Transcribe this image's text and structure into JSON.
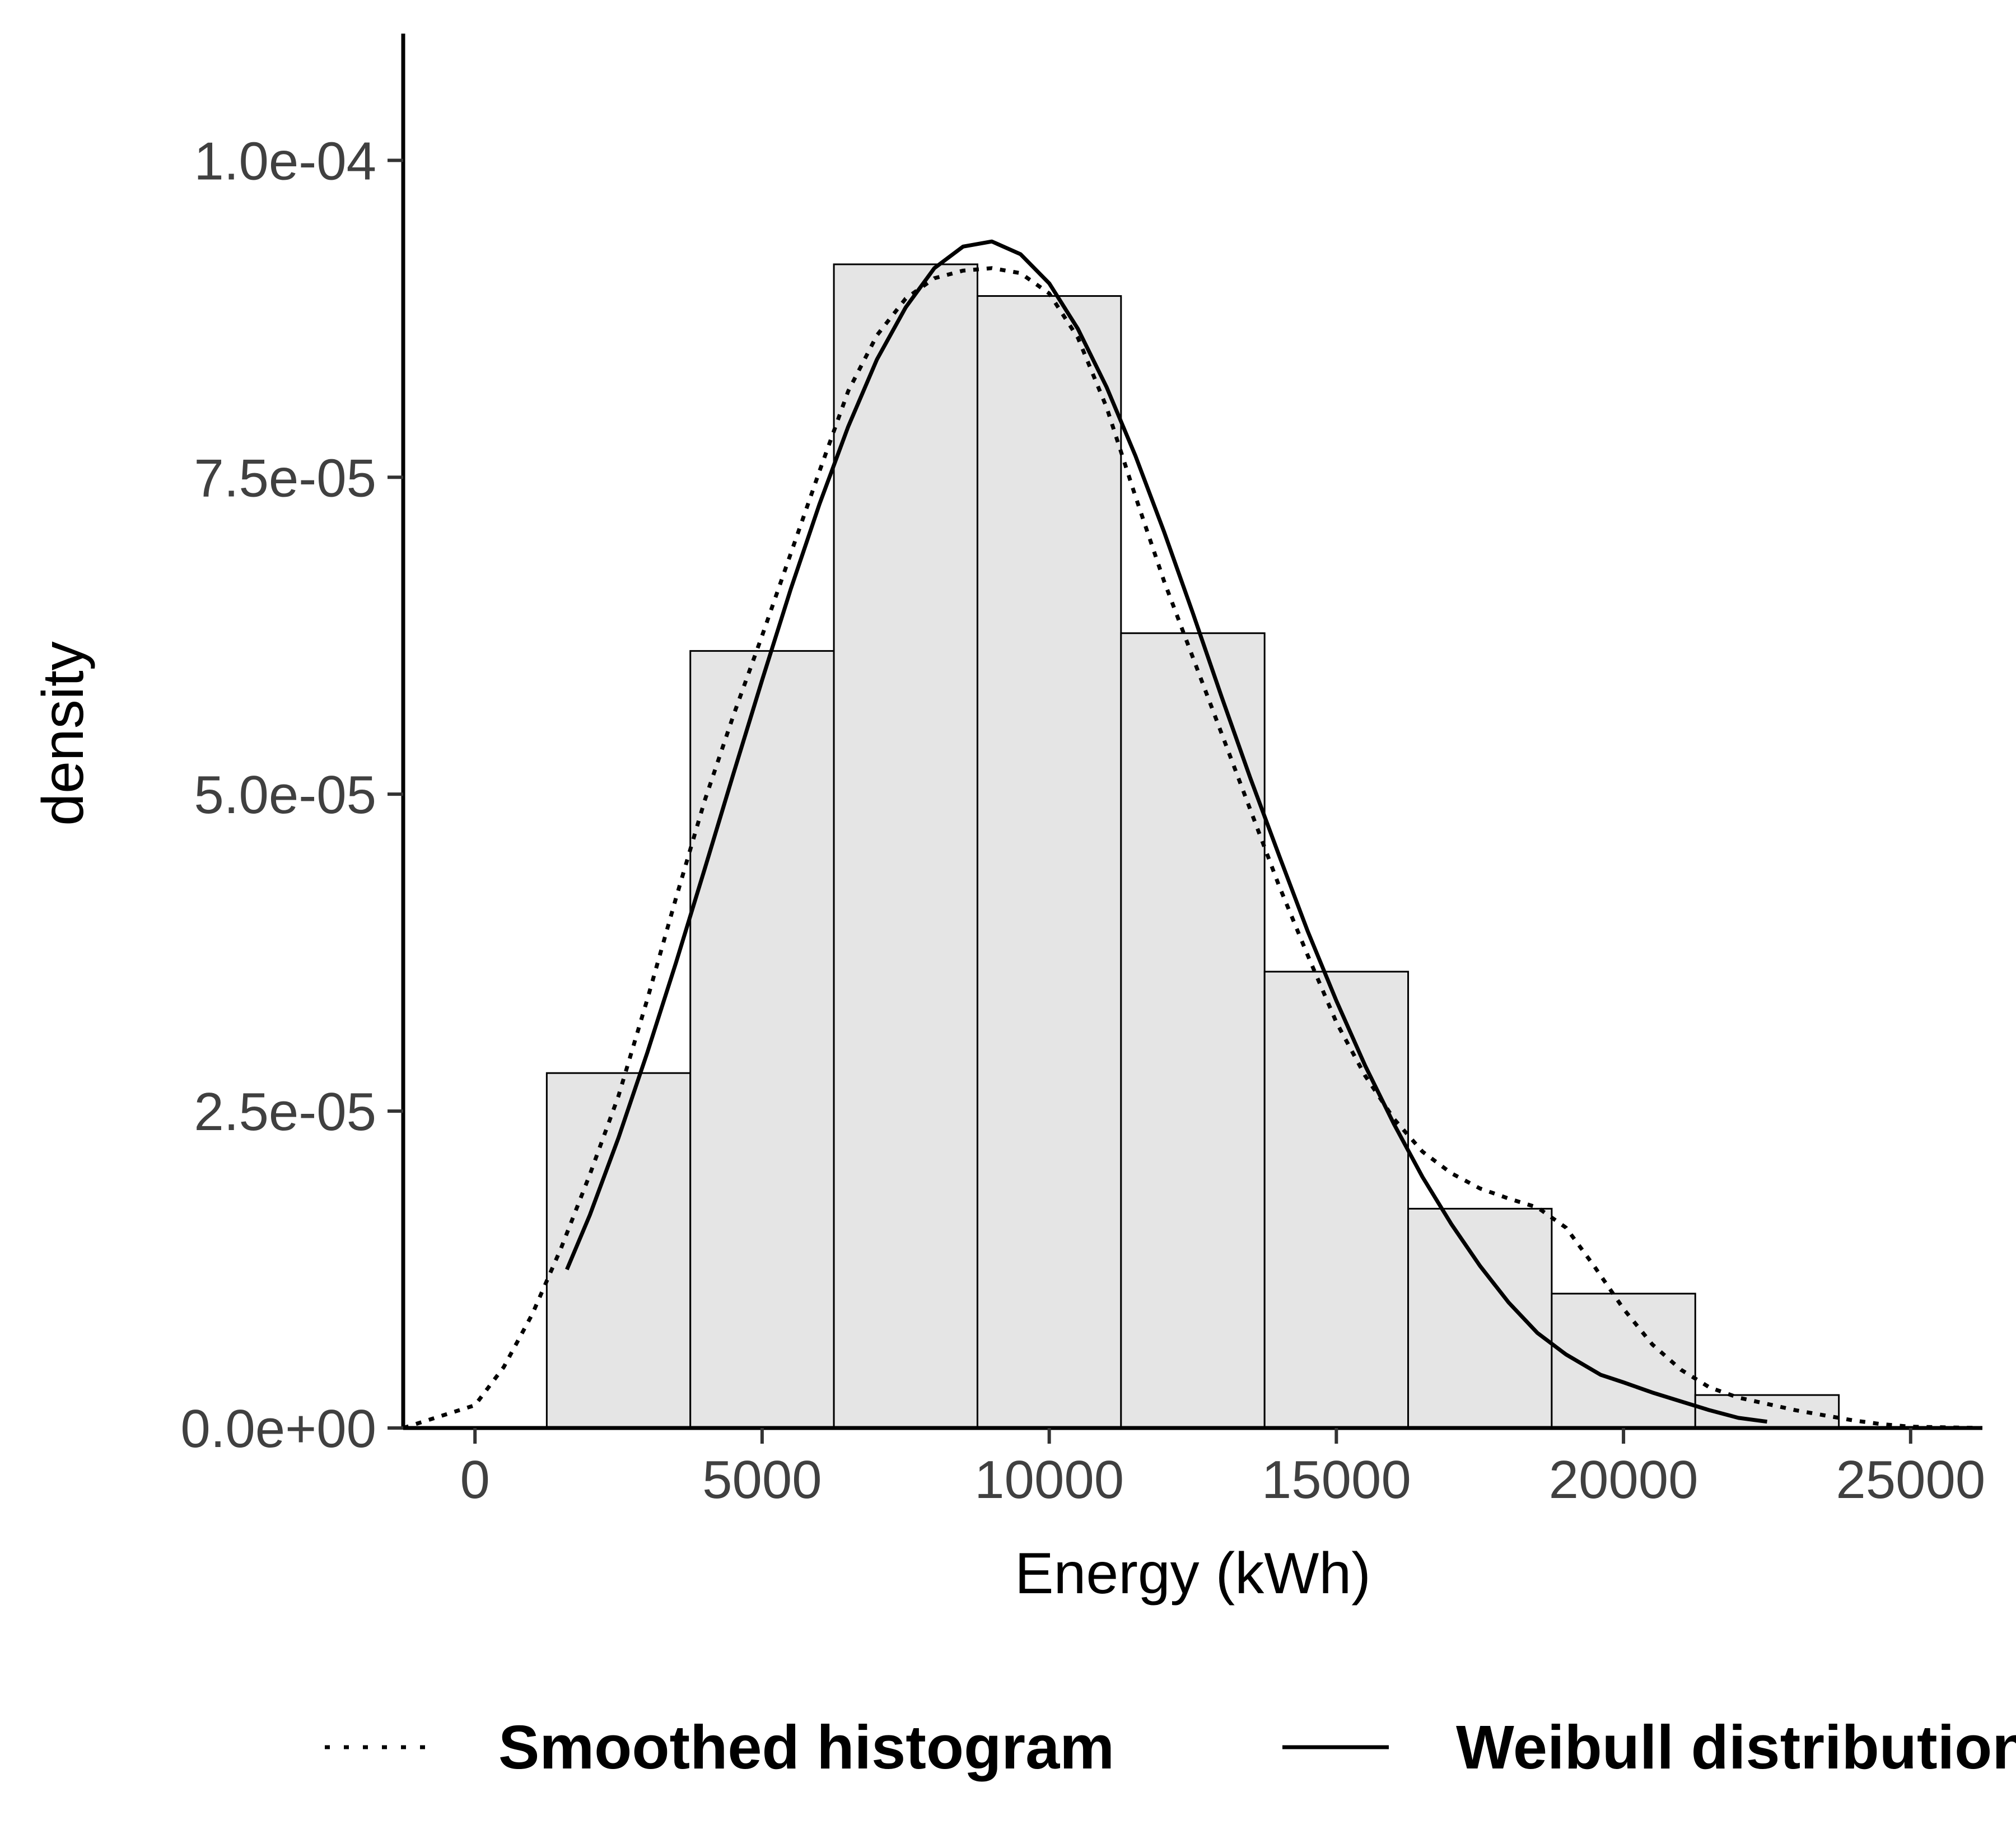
{
  "chart_data": {
    "type": "bar",
    "xlabel": "Energy (kWh)",
    "ylabel": "density",
    "xlim": [
      -1250,
      26250
    ],
    "ylim": [
      0,
      0.00011
    ],
    "x_ticks": [
      0,
      5000,
      10000,
      15000,
      20000,
      25000
    ],
    "x_tick_labels": [
      "0",
      "5000",
      "10000",
      "15000",
      "20000",
      "25000"
    ],
    "y_ticks": [
      0,
      2.5e-05,
      5e-05,
      7.5e-05,
      0.0001
    ],
    "y_tick_labels": [
      "0.0e+00",
      "2.5e-05",
      "5.0e-05",
      "7.5e-05",
      "1.0e-04"
    ],
    "grid": false,
    "colors": {
      "bar_fill": "#e5e5e5",
      "bar_stroke": "#000000",
      "lines": "#000000"
    },
    "histogram": {
      "bin_edges": [
        1250,
        3750,
        6250,
        8750,
        11250,
        13750,
        16250,
        18750,
        21250,
        23750
      ],
      "values": [
        2.8e-05,
        6.13e-05,
        9.18e-05,
        8.93e-05,
        6.27e-05,
        3.6e-05,
        1.73e-05,
        1.06e-05,
        2.6e-06
      ]
    },
    "series": [
      {
        "name": "Smoothed histogram",
        "style": "dotted",
        "x": [
          -1250,
          0,
          500,
          1000,
          1500,
          2000,
          2500,
          3000,
          3500,
          4000,
          4500,
          5000,
          5500,
          6000,
          6500,
          7000,
          7500,
          8000,
          8500,
          9000,
          9500,
          10000,
          10500,
          11000,
          11500,
          12000,
          12500,
          13000,
          13500,
          14000,
          14500,
          15000,
          15500,
          16000,
          16500,
          17000,
          17500,
          18000,
          18500,
          19000,
          19500,
          20000,
          20500,
          21000,
          21500,
          22000,
          22500,
          23000,
          23500,
          24000,
          24500,
          25000,
          26250
        ],
        "values": [
          0.0,
          1.8e-06,
          4.8e-06,
          9e-06,
          1.42e-05,
          2e-05,
          2.62e-05,
          3.38e-05,
          4.18e-05,
          4.95e-05,
          5.62e-05,
          6.25e-05,
          6.9e-05,
          7.55e-05,
          8.18e-05,
          8.62e-05,
          8.91e-05,
          9.07e-05,
          9.13e-05,
          9.15e-05,
          9.11e-05,
          8.95e-05,
          8.6e-05,
          8.05e-05,
          7.35e-05,
          6.68e-05,
          6.08e-05,
          5.48e-05,
          4.88e-05,
          4.28e-05,
          3.73e-05,
          3.2e-05,
          2.78e-05,
          2.44e-05,
          2.18e-05,
          2.01e-05,
          1.89e-05,
          1.81e-05,
          1.74e-05,
          1.58e-05,
          1.27e-05,
          9.4e-06,
          6.6e-06,
          4.6e-06,
          3.2e-06,
          2.4e-06,
          1.9e-06,
          1.4e-06,
          1e-06,
          6e-07,
          3e-07,
          1e-07,
          0.0
        ]
      },
      {
        "name": "Weibull distribution",
        "style": "solid",
        "x": [
          1600,
          2000,
          2500,
          3000,
          3500,
          4000,
          4500,
          5000,
          5500,
          6000,
          6500,
          7000,
          7500,
          8000,
          8500,
          9000,
          9500,
          10000,
          10500,
          11000,
          11500,
          12000,
          12500,
          13000,
          13500,
          14000,
          14500,
          15000,
          15500,
          16000,
          16500,
          17000,
          17500,
          18000,
          18500,
          19000,
          19600,
          20000,
          20500,
          21000,
          21500,
          22000,
          22500
        ],
        "values": [
          1.25e-05,
          1.68e-05,
          2.29e-05,
          2.96e-05,
          3.67e-05,
          4.41e-05,
          5.16e-05,
          5.9e-05,
          6.62e-05,
          7.29e-05,
          7.9e-05,
          8.43e-05,
          8.84e-05,
          9.15e-05,
          9.32e-05,
          9.36e-05,
          9.26e-05,
          9.03e-05,
          8.67e-05,
          8.21e-05,
          7.67e-05,
          7.07e-05,
          6.43e-05,
          5.77e-05,
          5.13e-05,
          4.52e-05,
          3.92e-05,
          3.37e-05,
          2.86e-05,
          2.4e-05,
          1.98e-05,
          1.61e-05,
          1.28e-05,
          9.9e-06,
          7.5e-06,
          5.8e-06,
          4.2e-06,
          3.6e-06,
          2.8e-06,
          2.1e-06,
          1.4e-06,
          8e-07,
          5e-07
        ]
      }
    ],
    "legend": {
      "position": "bottom",
      "items": [
        {
          "label": "Smoothed histogram",
          "style": "dotted"
        },
        {
          "label": "Weibull distribution",
          "style": "solid"
        }
      ]
    }
  }
}
